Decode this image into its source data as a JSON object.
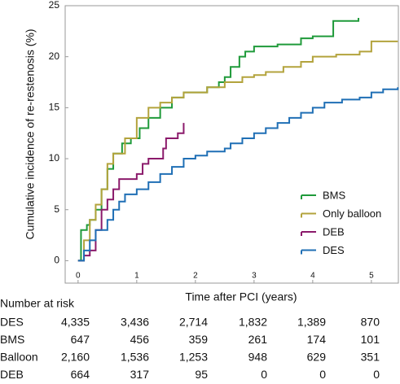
{
  "chart_data": {
    "type": "line",
    "step": true,
    "y_label": "Cumulative incidence of re-restenosis (%)",
    "x_label": "Time after PCI (years)",
    "xlim": [
      -0.22,
      5.46
    ],
    "ylim": [
      -2.2,
      25
    ],
    "xticks": [
      0,
      1,
      2,
      3,
      4,
      5
    ],
    "yticks": [
      0,
      5,
      10,
      15,
      20,
      25
    ],
    "legend": "lower right",
    "series": [
      {
        "name": "BMS",
        "color": "#1f9a3a",
        "x": [
          0,
          0.05,
          0.15,
          0.2,
          0.3,
          0.4,
          0.5,
          0.6,
          0.75,
          0.9,
          1.05,
          1.2,
          1.4,
          1.6,
          1.8,
          2.2,
          2.4,
          2.5,
          2.6,
          2.75,
          2.85,
          3.0,
          3.4,
          3.8,
          4.0,
          4.35,
          4.78
        ],
        "values": [
          0,
          3,
          3.5,
          4,
          5,
          7,
          9,
          10.5,
          11.5,
          12,
          13,
          14,
          15,
          16,
          16.5,
          17,
          17.5,
          18,
          19,
          20,
          20.5,
          21,
          21.2,
          21.8,
          22,
          23.5,
          23.8
        ]
      },
      {
        "name": "Only balloon",
        "color": "#b3a33c",
        "x": [
          0,
          0.1,
          0.2,
          0.3,
          0.4,
          0.5,
          0.6,
          0.8,
          1.0,
          1.2,
          1.4,
          1.6,
          1.8,
          2.2,
          2.5,
          2.8,
          3.0,
          3.2,
          3.5,
          3.8,
          4.0,
          4.4,
          4.8,
          5.0,
          5.45
        ],
        "values": [
          0,
          2,
          4,
          5.5,
          7,
          9.5,
          10.5,
          12,
          14,
          15,
          15.5,
          16,
          16.5,
          17,
          17.5,
          18,
          18.2,
          18.5,
          19,
          19.5,
          20,
          20.2,
          20.5,
          21.5,
          21.5
        ]
      },
      {
        "name": "DEB",
        "color": "#8b1a6b",
        "x": [
          0,
          0.1,
          0.2,
          0.3,
          0.4,
          0.5,
          0.6,
          0.7,
          1.0,
          1.1,
          1.2,
          1.45,
          1.5,
          1.7,
          1.8
        ],
        "values": [
          0,
          0.5,
          1,
          3,
          5,
          6,
          7,
          8,
          8.5,
          9.5,
          10,
          11,
          12,
          12.5,
          13.5
        ]
      },
      {
        "name": "DES",
        "color": "#1f6fb5",
        "x": [
          0,
          0.1,
          0.2,
          0.3,
          0.5,
          0.6,
          0.7,
          0.8,
          1.0,
          1.2,
          1.4,
          1.6,
          1.8,
          2.0,
          2.2,
          2.5,
          2.6,
          2.8,
          3.0,
          3.2,
          3.4,
          3.6,
          3.8,
          4.0,
          4.2,
          4.5,
          4.8,
          5.0,
          5.2,
          5.45
        ],
        "values": [
          0,
          1,
          2,
          3,
          4,
          5,
          5.8,
          6.5,
          7,
          7.7,
          8.5,
          9.2,
          10,
          10.3,
          10.7,
          11,
          11.5,
          12,
          12.5,
          13,
          13.5,
          14,
          14.5,
          15,
          15.5,
          15.8,
          16,
          16.5,
          16.8,
          17
        ]
      }
    ],
    "risk_table": {
      "title": "Number at risk",
      "rows": [
        {
          "label": "DES",
          "values": [
            "4,335",
            "3,436",
            "2,714",
            "1,832",
            "1,389",
            "870"
          ]
        },
        {
          "label": "BMS",
          "values": [
            "647",
            "456",
            "359",
            "261",
            "174",
            "101"
          ]
        },
        {
          "label": "Balloon",
          "values": [
            "2,160",
            "1,536",
            "1,253",
            "948",
            "629",
            "351"
          ]
        },
        {
          "label": "DEB",
          "values": [
            "664",
            "317",
            "95",
            "0",
            "0",
            "0"
          ]
        }
      ]
    }
  }
}
